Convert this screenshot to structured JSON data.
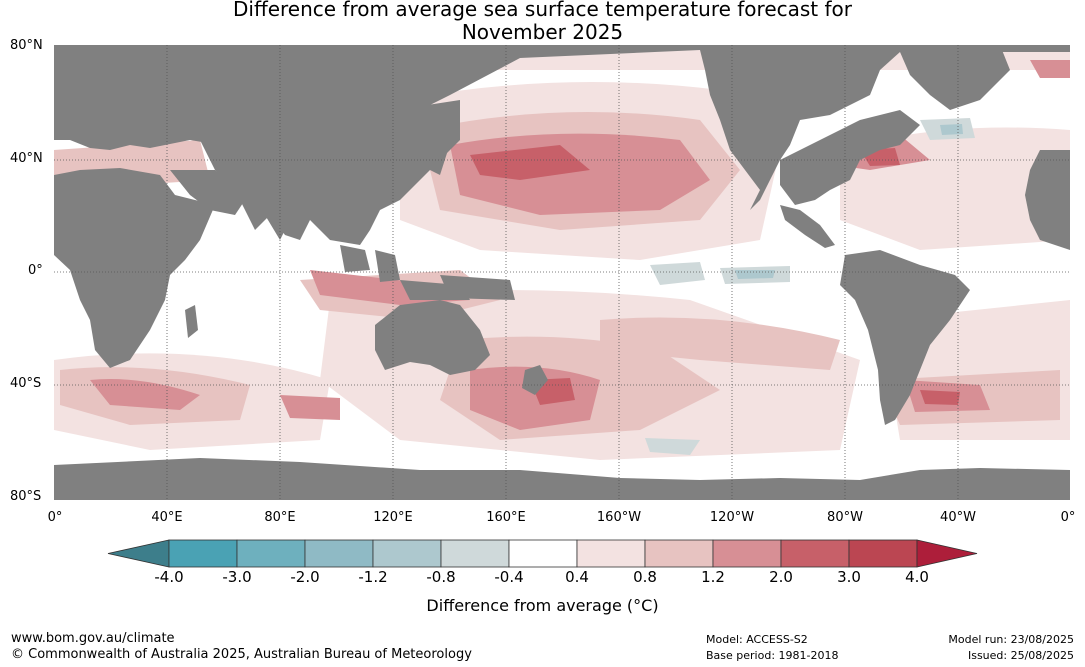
{
  "title_line1": "Difference from average sea surface temperature forecast for",
  "title_line2": "November 2025",
  "lat_labels": [
    "80°N",
    "40°N",
    "0°",
    "40°S",
    "80°S"
  ],
  "lon_labels": [
    "0°",
    "40°E",
    "80°E",
    "120°E",
    "160°E",
    "160°W",
    "120°W",
    "80°W",
    "40°W",
    "0°"
  ],
  "colorbar": {
    "ticks": [
      "-4.0",
      "-3.0",
      "-2.0",
      "-1.2",
      "-0.8",
      "-0.4",
      "0.4",
      "0.8",
      "1.2",
      "2.0",
      "3.0",
      "4.0"
    ],
    "colors": [
      "#3d7e8b",
      "#4aa2b4",
      "#6eb0be",
      "#8fbac5",
      "#adc8ce",
      "#cfd9da",
      "#ffffff",
      "#f3e2e1",
      "#e7c3c1",
      "#d78f95",
      "#c76069",
      "#bb4652",
      "#ad1e3a"
    ],
    "title": "Difference from average (°C)"
  },
  "footer": {
    "url": "www.bom.gov.au/climate",
    "copyright": "© Commonwealth of Australia 2025, Australian Bureau of Meteorology",
    "model": "Model: ACCESS-S2",
    "base_period": "Base period: 1981-2018",
    "model_run": "Model run: 23/08/2025",
    "issued": "Issued: 25/08/2025"
  },
  "colors": {
    "land": "#808080",
    "ocean_neutral": "#ffffff"
  }
}
